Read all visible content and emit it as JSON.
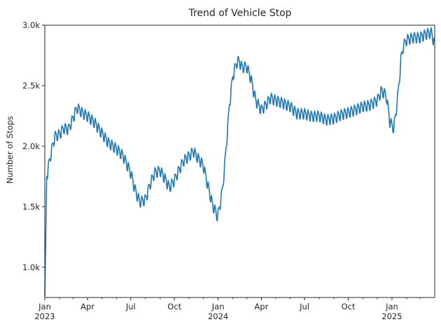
{
  "chart_data": {
    "type": "line",
    "title": "Trend of Vehicle Stop",
    "xlabel": "",
    "ylabel": "Number of Stops",
    "grid": false,
    "legend": "none",
    "line_color": "#1f77b4",
    "xlim": [
      "2023-01-01",
      "2025-04-01"
    ],
    "ylim": [
      750,
      3000
    ],
    "yticks": [
      {
        "value": 1000,
        "label": "1.0k"
      },
      {
        "value": 1500,
        "label": "1.5k"
      },
      {
        "value": 2000,
        "label": "2.0k"
      },
      {
        "value": 2500,
        "label": "2.5k"
      },
      {
        "value": 3000,
        "label": "3.0k"
      }
    ],
    "xticks_major": [
      {
        "date": "2023-01-01",
        "label": "Jan",
        "sublabel": "2023"
      },
      {
        "date": "2023-04-01",
        "label": "Apr",
        "sublabel": ""
      },
      {
        "date": "2023-07-01",
        "label": "Jul",
        "sublabel": ""
      },
      {
        "date": "2023-10-01",
        "label": "Oct",
        "sublabel": ""
      },
      {
        "date": "2024-01-01",
        "label": "Jan",
        "sublabel": "2024"
      },
      {
        "date": "2024-04-01",
        "label": "Apr",
        "sublabel": ""
      },
      {
        "date": "2024-07-01",
        "label": "Jul",
        "sublabel": ""
      },
      {
        "date": "2024-10-01",
        "label": "Oct",
        "sublabel": ""
      },
      {
        "date": "2025-01-01",
        "label": "Jan",
        "sublabel": "2025"
      }
    ],
    "xticks_minor": [
      "2023-02-01",
      "2023-03-01",
      "2023-05-01",
      "2023-06-01",
      "2023-08-01",
      "2023-09-01",
      "2023-11-01",
      "2023-12-01",
      "2024-02-01",
      "2024-03-01",
      "2024-05-01",
      "2024-06-01",
      "2024-08-01",
      "2024-09-01",
      "2024-11-01",
      "2024-12-01",
      "2025-02-01",
      "2025-03-01"
    ],
    "series": [
      {
        "name": "",
        "x": [
          "2023-01-01",
          "2023-01-05",
          "2023-01-10",
          "2023-01-15",
          "2023-01-22",
          "2023-02-01",
          "2023-02-10",
          "2023-02-20",
          "2023-03-01",
          "2023-03-10",
          "2023-03-20",
          "2023-04-01",
          "2023-04-15",
          "2023-05-01",
          "2023-05-15",
          "2023-06-01",
          "2023-06-15",
          "2023-07-01",
          "2023-07-10",
          "2023-07-20",
          "2023-08-01",
          "2023-08-10",
          "2023-08-20",
          "2023-09-01",
          "2023-09-10",
          "2023-09-20",
          "2023-10-01",
          "2023-10-10",
          "2023-10-20",
          "2023-11-01",
          "2023-11-10",
          "2023-11-20",
          "2023-12-01",
          "2023-12-10",
          "2023-12-20",
          "2023-12-31",
          "2024-01-05",
          "2024-01-10",
          "2024-01-15",
          "2024-01-20",
          "2024-01-25",
          "2024-02-01",
          "2024-02-05",
          "2024-02-10",
          "2024-02-15",
          "2024-02-20",
          "2024-03-01",
          "2024-03-10",
          "2024-03-20",
          "2024-04-01",
          "2024-04-10",
          "2024-04-20",
          "2024-05-01",
          "2024-05-15",
          "2024-06-01",
          "2024-06-15",
          "2024-07-01",
          "2024-07-15",
          "2024-08-01",
          "2024-08-15",
          "2024-09-01",
          "2024-09-15",
          "2024-10-01",
          "2024-10-15",
          "2024-11-01",
          "2024-11-15",
          "2024-12-01",
          "2024-12-10",
          "2024-12-20",
          "2024-12-28",
          "2025-01-05",
          "2025-01-10",
          "2025-01-15",
          "2025-01-20",
          "2025-01-25",
          "2025-02-01",
          "2025-02-15",
          "2025-03-01",
          "2025-03-15",
          "2025-03-25",
          "2025-04-01"
        ],
        "values": [
          760,
          1750,
          1860,
          1960,
          2080,
          2100,
          2150,
          2140,
          2230,
          2320,
          2280,
          2250,
          2200,
          2110,
          2030,
          1980,
          1920,
          1780,
          1640,
          1540,
          1560,
          1680,
          1780,
          1800,
          1740,
          1660,
          1720,
          1800,
          1880,
          1920,
          1960,
          1900,
          1840,
          1680,
          1520,
          1420,
          1520,
          1640,
          1850,
          2100,
          2350,
          2580,
          2640,
          2700,
          2700,
          2650,
          2660,
          2560,
          2380,
          2300,
          2340,
          2400,
          2380,
          2360,
          2330,
          2270,
          2270,
          2250,
          2250,
          2220,
          2230,
          2260,
          2280,
          2300,
          2330,
          2340,
          2380,
          2460,
          2420,
          2200,
          2150,
          2300,
          2480,
          2720,
          2830,
          2880,
          2900,
          2900,
          2930,
          2940,
          2840
        ]
      }
    ]
  }
}
